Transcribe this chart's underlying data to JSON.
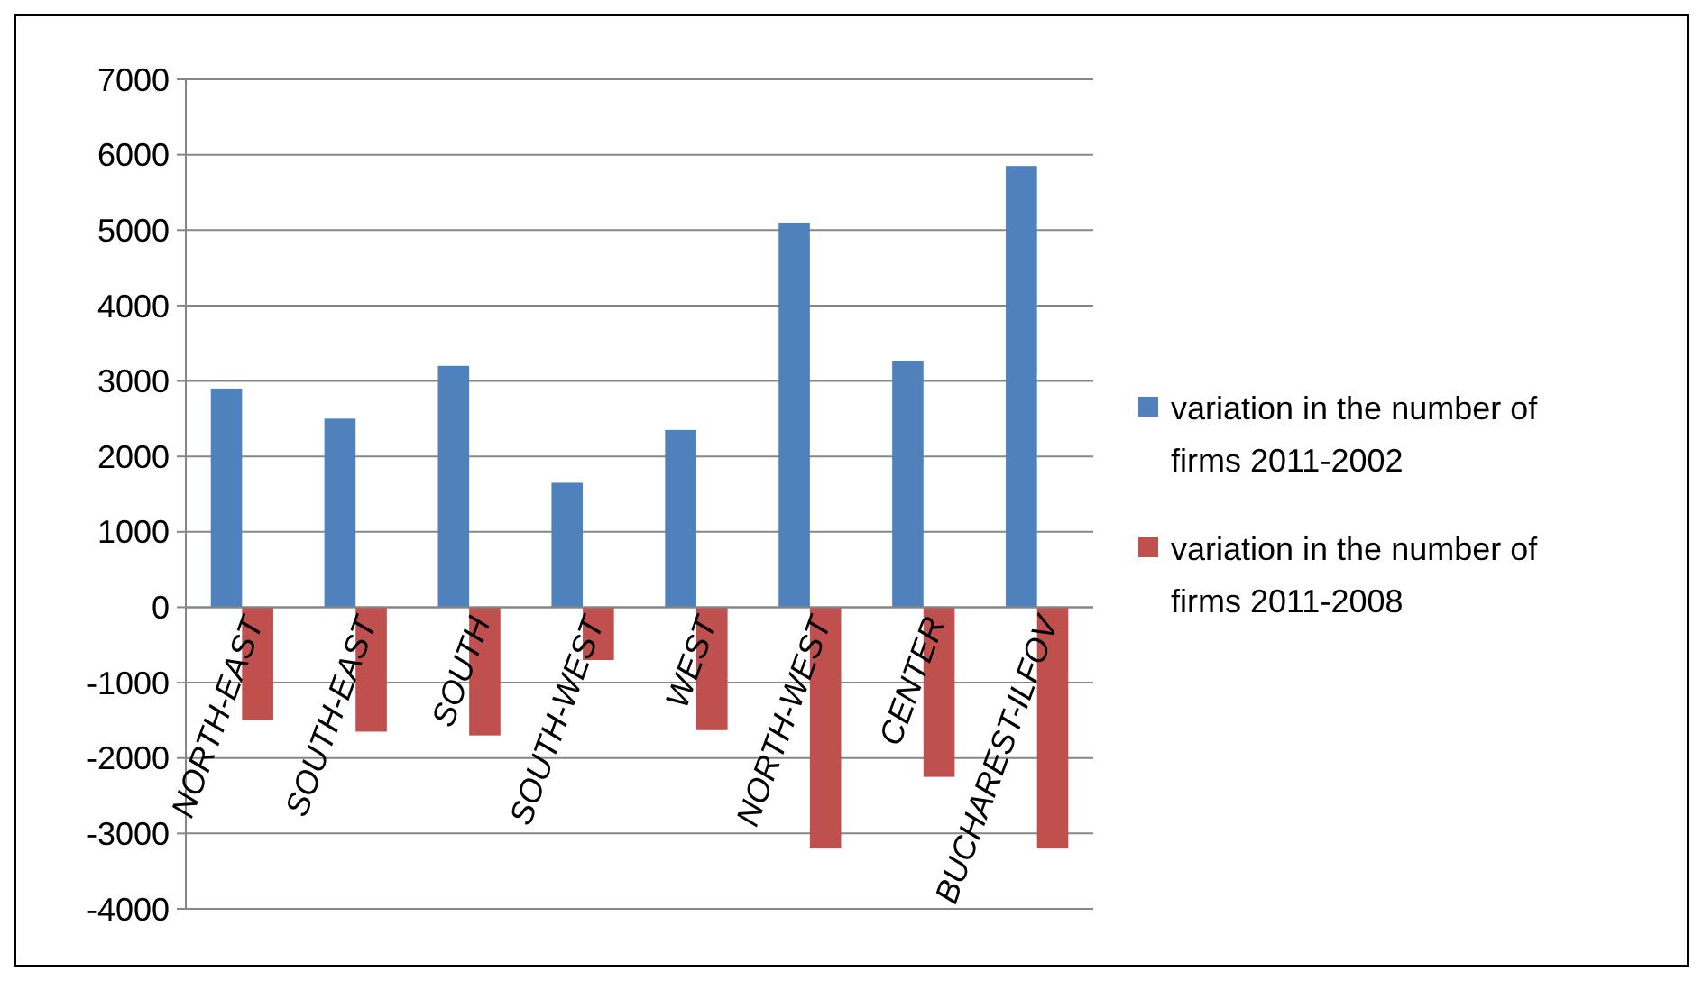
{
  "chart_data": {
    "type": "bar",
    "categories": [
      "NORTH-EAST",
      "SOUTH-EAST",
      "SOUTH",
      "SOUTH-WEST",
      "WEST",
      "NORTH-WEST",
      "CENTER",
      "BUCHAREST-ILFOV"
    ],
    "series": [
      {
        "name": "variation in the number of firms 2011-2002",
        "color": "#4f81bd",
        "values": [
          2900,
          2500,
          3200,
          1650,
          2350,
          5100,
          3270,
          5850
        ]
      },
      {
        "name": "variation in the number of firms 2011-2008",
        "color": "#c0504d",
        "values": [
          -1500,
          -1650,
          -1700,
          -700,
          -1630,
          -3200,
          -2250,
          -3200
        ]
      }
    ],
    "ylim": [
      -4000,
      7000
    ],
    "yticks": [
      -4000,
      -3000,
      -2000,
      -1000,
      0,
      1000,
      2000,
      3000,
      4000,
      5000,
      6000,
      7000
    ],
    "grid": "y",
    "legend": "right"
  }
}
